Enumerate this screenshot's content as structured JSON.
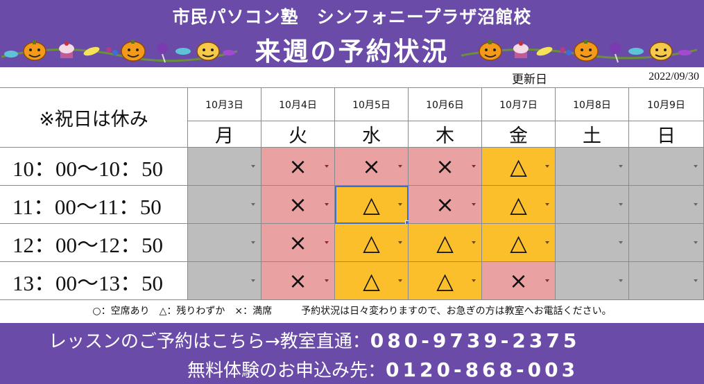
{
  "header": {
    "school_name": "市民パソコン塾　シンフォニープラザ沼館校",
    "title": "来週の予約状況"
  },
  "updated": {
    "label": "更新日",
    "date": "2022/09/30"
  },
  "schedule": {
    "note": "※祝日は休み",
    "days": [
      {
        "date": "10月3日",
        "weekday": "月"
      },
      {
        "date": "10月4日",
        "weekday": "火"
      },
      {
        "date": "10月5日",
        "weekday": "水"
      },
      {
        "date": "10月6日",
        "weekday": "木"
      },
      {
        "date": "10月7日",
        "weekday": "金"
      },
      {
        "date": "10月8日",
        "weekday": "土"
      },
      {
        "date": "10月9日",
        "weekday": "日"
      }
    ],
    "rows": [
      {
        "time": "10：00〜10：50",
        "slots": [
          {
            "mark": "",
            "status": "closed"
          },
          {
            "mark": "×",
            "status": "full"
          },
          {
            "mark": "×",
            "status": "full"
          },
          {
            "mark": "×",
            "status": "full"
          },
          {
            "mark": "△",
            "status": "few"
          },
          {
            "mark": "",
            "status": "closed"
          },
          {
            "mark": "",
            "status": "closed"
          }
        ]
      },
      {
        "time": "11：00〜11：50",
        "slots": [
          {
            "mark": "",
            "status": "closed"
          },
          {
            "mark": "×",
            "status": "full"
          },
          {
            "mark": "△",
            "status": "few"
          },
          {
            "mark": "×",
            "status": "full"
          },
          {
            "mark": "△",
            "status": "few"
          },
          {
            "mark": "",
            "status": "closed"
          },
          {
            "mark": "",
            "status": "closed"
          }
        ]
      },
      {
        "time": "12：00〜12：50",
        "slots": [
          {
            "mark": "",
            "status": "closed"
          },
          {
            "mark": "×",
            "status": "full"
          },
          {
            "mark": "△",
            "status": "few"
          },
          {
            "mark": "△",
            "status": "few"
          },
          {
            "mark": "△",
            "status": "few"
          },
          {
            "mark": "",
            "status": "closed"
          },
          {
            "mark": "",
            "status": "closed"
          }
        ]
      },
      {
        "time": "13：00〜13：50",
        "slots": [
          {
            "mark": "",
            "status": "closed"
          },
          {
            "mark": "×",
            "status": "full"
          },
          {
            "mark": "△",
            "status": "few"
          },
          {
            "mark": "△",
            "status": "few"
          },
          {
            "mark": "×",
            "status": "full"
          },
          {
            "mark": "",
            "status": "closed"
          },
          {
            "mark": "",
            "status": "closed"
          }
        ]
      }
    ],
    "selected_cell": {
      "row": 1,
      "col": 2
    }
  },
  "legend": "○：空席あり　△：残りわずか　×：満席　　　予約状況は日々変わりますので、お急ぎの方は教室へお電話ください。",
  "footer": {
    "line1_label": "レッスンのご予約はこちら→教室直通：",
    "line1_phone": "080-9739-2375",
    "line2_label": "無料体験のお申込み先：",
    "line2_phone": "0120-868-003"
  },
  "colors": {
    "banner": "#6a4ca8",
    "closed": "#bdbdbd",
    "full": "#eaa1a1",
    "few": "#fbbf2b",
    "selection": "#3b6fd6"
  },
  "decorations": [
    "pumpkin-icon",
    "cupcake-icon",
    "candy-icon",
    "lollipop-icon"
  ]
}
